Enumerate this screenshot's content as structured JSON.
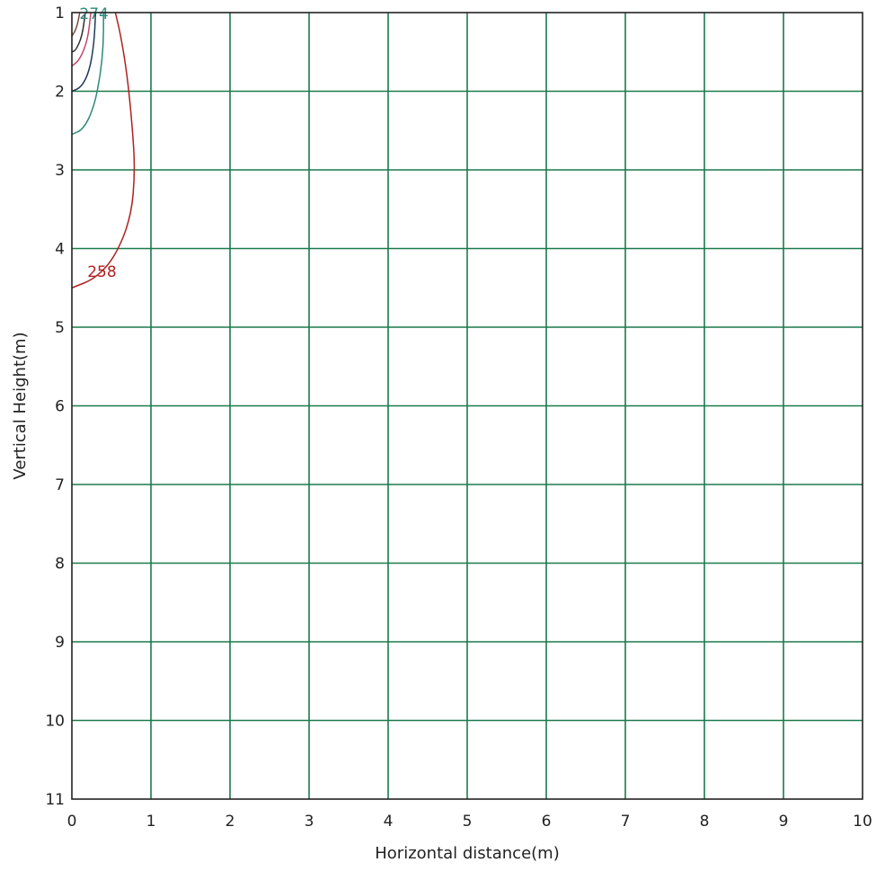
{
  "chart_data": {
    "type": "contour",
    "title": "",
    "xlabel": "Horizontal distance(m)",
    "ylabel": "Vertical Height(m)",
    "xlim": [
      0,
      10
    ],
    "ylim": [
      1,
      11
    ],
    "y_axis_direction": "down",
    "x_ticks": [
      0,
      1,
      2,
      3,
      4,
      5,
      6,
      7,
      8,
      9,
      10
    ],
    "y_ticks": [
      1,
      2,
      3,
      4,
      5,
      6,
      7,
      8,
      9,
      10,
      11
    ],
    "grid": true,
    "colors": {
      "grid": "#1a7a4c",
      "frame": "#222222",
      "text": "#222222"
    },
    "contours": [
      {
        "color": "#b02020",
        "label": "258",
        "points": [
          [
            0.55,
            1.0
          ],
          [
            0.62,
            1.3
          ],
          [
            0.7,
            1.8
          ],
          [
            0.76,
            2.4
          ],
          [
            0.8,
            3.0
          ],
          [
            0.75,
            3.6
          ],
          [
            0.55,
            4.1
          ],
          [
            0.3,
            4.38
          ],
          [
            0.0,
            4.5
          ]
        ]
      },
      {
        "color": "#2e8a7a",
        "label": "274",
        "points": [
          [
            0.4,
            1.0
          ],
          [
            0.4,
            1.4
          ],
          [
            0.36,
            1.8
          ],
          [
            0.28,
            2.2
          ],
          [
            0.15,
            2.48
          ],
          [
            0.0,
            2.55
          ]
        ]
      },
      {
        "color": "#1f3a5a",
        "label": "",
        "points": [
          [
            0.3,
            1.0
          ],
          [
            0.28,
            1.4
          ],
          [
            0.22,
            1.75
          ],
          [
            0.12,
            1.95
          ],
          [
            0.0,
            2.0
          ]
        ]
      },
      {
        "color": "#c04a6a",
        "label": "",
        "points": [
          [
            0.24,
            1.0
          ],
          [
            0.2,
            1.35
          ],
          [
            0.1,
            1.6
          ],
          [
            0.0,
            1.68
          ]
        ]
      },
      {
        "color": "#303030",
        "label": "",
        "points": [
          [
            0.17,
            1.0
          ],
          [
            0.13,
            1.3
          ],
          [
            0.05,
            1.48
          ],
          [
            0.0,
            1.5
          ]
        ]
      },
      {
        "color": "#7a4a3a",
        "label": "",
        "points": [
          [
            0.1,
            1.0
          ],
          [
            0.06,
            1.2
          ],
          [
            0.0,
            1.3
          ]
        ]
      }
    ]
  }
}
